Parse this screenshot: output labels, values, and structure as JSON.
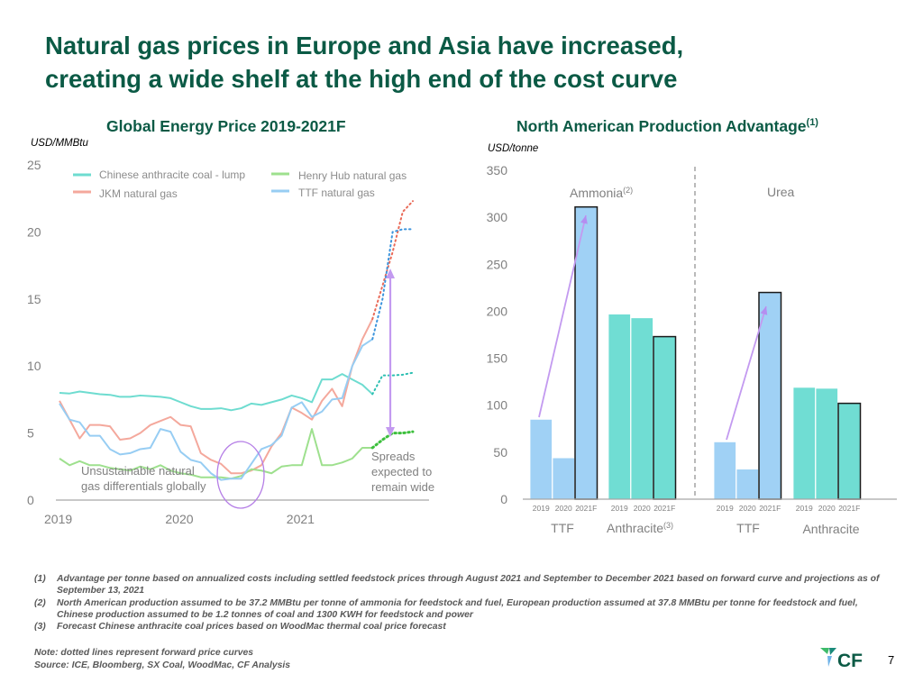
{
  "page": {
    "title_line1": "Natural gas prices in Europe and Asia have increased,",
    "title_line2": "creating a wide shelf at the high end of the cost curve",
    "page_number": "7",
    "logo_text": "CF",
    "colors": {
      "title": "#0b5a45",
      "coal": "#6edcd0",
      "jkm": "#f4a89c",
      "henry_hub": "#9ee08e",
      "ttf": "#97cdf3",
      "annotation": "#c39af0"
    }
  },
  "chart_data": [
    {
      "type": "line",
      "title": "Global Energy Price 2019-2021F",
      "ylabel": "USD/MMBtu",
      "xlabel": "",
      "ylim": [
        0,
        25
      ],
      "yticks": [
        "0",
        "5",
        "10",
        "15",
        "20",
        "25"
      ],
      "xticks": [
        "2019",
        "2020",
        "2021"
      ],
      "legend_position": "top-left",
      "x": [
        "2019-01",
        "2019-02",
        "2019-03",
        "2019-04",
        "2019-05",
        "2019-06",
        "2019-07",
        "2019-08",
        "2019-09",
        "2019-10",
        "2019-11",
        "2019-12",
        "2020-01",
        "2020-02",
        "2020-03",
        "2020-04",
        "2020-05",
        "2020-06",
        "2020-07",
        "2020-08",
        "2020-09",
        "2020-10",
        "2020-11",
        "2020-12",
        "2021-01",
        "2021-02",
        "2021-03",
        "2021-04",
        "2021-05",
        "2021-06",
        "2021-07",
        "2021-08",
        "2021-09",
        "2021-10",
        "2021-11",
        "2021-12"
      ],
      "forecast_start_index": 31,
      "series": [
        {
          "name": "Chinese anthracite coal - lump",
          "color": "#6edcd0",
          "values": [
            8.0,
            7.95,
            8.1,
            8.0,
            7.9,
            7.85,
            7.7,
            7.7,
            7.8,
            7.75,
            7.7,
            7.6,
            7.3,
            7.0,
            6.8,
            6.8,
            6.85,
            6.7,
            6.85,
            7.2,
            7.1,
            7.3,
            7.5,
            7.8,
            7.6,
            7.3,
            9.0,
            9.0,
            9.4,
            9.0,
            8.6,
            7.9,
            9.3,
            9.3,
            9.35,
            9.5
          ]
        },
        {
          "name": "JKM natural gas",
          "color": "#f4a89c",
          "values": [
            7.4,
            6.0,
            4.6,
            5.6,
            5.6,
            5.5,
            4.5,
            4.6,
            5.0,
            5.6,
            5.9,
            6.2,
            5.6,
            5.5,
            3.5,
            3.0,
            2.7,
            2.0,
            2.0,
            2.2,
            2.6,
            4.0,
            5.0,
            6.9,
            6.5,
            6.0,
            7.4,
            8.3,
            7.0,
            10.0,
            12.0,
            13.5,
            16.0,
            18.5,
            21.5,
            22.3
          ]
        },
        {
          "name": "Henry Hub natural gas",
          "color": "#9ee08e",
          "values": [
            3.1,
            2.6,
            2.9,
            2.6,
            2.6,
            2.4,
            2.3,
            2.2,
            2.5,
            2.3,
            2.6,
            2.2,
            2.0,
            1.9,
            1.7,
            1.7,
            1.7,
            1.6,
            1.8,
            2.3,
            2.2,
            2.0,
            2.5,
            2.6,
            2.6,
            5.3,
            2.6,
            2.6,
            2.8,
            3.1,
            3.9,
            3.9,
            4.5,
            5.0,
            5.0,
            5.1
          ]
        },
        {
          "name": "TTF natural gas",
          "color": "#97cdf3",
          "values": [
            7.2,
            6.0,
            5.8,
            4.8,
            4.8,
            3.8,
            3.4,
            3.5,
            3.8,
            3.9,
            5.3,
            5.1,
            3.6,
            3.0,
            2.8,
            2.0,
            1.5,
            1.6,
            1.6,
            2.7,
            3.8,
            4.1,
            4.8,
            6.9,
            7.3,
            6.2,
            6.6,
            7.5,
            7.6,
            10.0,
            11.5,
            12.0,
            15.0,
            20.0,
            20.2,
            20.2
          ]
        }
      ],
      "annotations": [
        {
          "text": "Unsustainable natural gas differentials globally",
          "line1": "Unsustainable natural",
          "line2": "gas differentials globally"
        },
        {
          "text": "Spreads expected to remain wide",
          "line1": "Spreads",
          "line2": "expected to",
          "line3": "remain wide"
        }
      ],
      "note": "dotted lines represent forward price curves"
    },
    {
      "type": "bar",
      "title": "North American Production Advantage",
      "title_superscript": "(1)",
      "ylabel": "USD/tonne",
      "ylim": [
        0,
        350
      ],
      "yticks": [
        "0",
        "50",
        "100",
        "150",
        "200",
        "250",
        "300",
        "350"
      ],
      "panels": [
        {
          "name": "Ammonia",
          "superscript": "(2)",
          "groups": [
            {
              "label": "TTF",
              "superscript": "",
              "color": "#a0d1f5",
              "categories": [
                "2019",
                "2020",
                "2021F"
              ],
              "values": [
                85,
                44,
                311
              ],
              "outlined_index": 2
            },
            {
              "label": "Anthracite",
              "superscript": "(3)",
              "color": "#70ddd3",
              "categories": [
                "2019",
                "2020",
                "2021F"
              ],
              "values": [
                197,
                193,
                173
              ],
              "outlined_index": 2
            }
          ]
        },
        {
          "name": "Urea",
          "superscript": "",
          "groups": [
            {
              "label": "TTF",
              "superscript": "",
              "color": "#a0d1f5",
              "categories": [
                "2019",
                "2020",
                "2021F"
              ],
              "values": [
                61,
                32,
                220
              ],
              "outlined_index": 2
            },
            {
              "label": "Anthracite",
              "superscript": "",
              "color": "#70ddd3",
              "categories": [
                "2019",
                "2020",
                "2021F"
              ],
              "values": [
                119,
                118,
                102
              ],
              "outlined_index": 2
            }
          ]
        }
      ]
    }
  ],
  "left_chart": {
    "title": "Global Energy Price 2019-2021F",
    "unit": "USD/MMBtu",
    "legend": [
      "Chinese anthracite coal - lump",
      "Henry Hub natural gas",
      "JKM natural gas",
      "TTF natural gas"
    ]
  },
  "right_chart": {
    "title": "North American Production Advantage",
    "title_sup": "(1)",
    "unit": "USD/tonne",
    "panel1": "Ammonia",
    "panel1_sup": "(2)",
    "panel2": "Urea",
    "group_labels": [
      "TTF",
      "Anthracite",
      "TTF",
      "Anthracite"
    ],
    "anthracite_sup": "(3)"
  },
  "footnotes": [
    {
      "num": "(1)",
      "text": "Advantage per tonne based on annualized costs including settled feedstock prices through August 2021 and September to December 2021 based on forward curve and projections as of September 13, 2021"
    },
    {
      "num": "(2)",
      "text": "North American production assumed to be 37.2 MMBtu per tonne of ammonia for feedstock and fuel, European production assumed at 37.8 MMBtu per tonne for feedstock and fuel, Chinese production assumed to be 1.2 tonnes of coal and 1300 KWH for feedstock and power"
    },
    {
      "num": "(3)",
      "text": "Forecast Chinese anthracite coal prices based on WoodMac thermal coal price forecast"
    }
  ],
  "note": {
    "line1": "Note: dotted lines represent forward price curves",
    "line2": "Source: ICE, Bloomberg, SX Coal, WoodMac, CF Analysis"
  }
}
